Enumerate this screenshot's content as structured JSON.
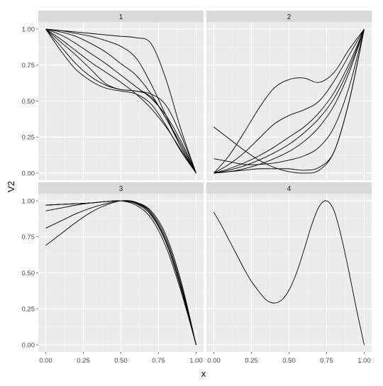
{
  "chart_data": {
    "type": "line",
    "title": "",
    "xlabel": "x",
    "ylabel": "V2",
    "xlim": [
      0,
      1
    ],
    "ylim": [
      0,
      1
    ],
    "x_ticks": [
      "0.00",
      "0.25",
      "0.50",
      "0.75",
      "1.00"
    ],
    "y_ticks": [
      "0.00",
      "0.25",
      "0.50",
      "0.75",
      "1.00"
    ],
    "grid": true,
    "legend": "none",
    "colors": {
      "panel_bg": "#ebebeb",
      "strip_bg": "#d9d9d9",
      "grid_major": "#ffffff",
      "grid_minor": "#f5f5f5",
      "line": "#000000"
    },
    "facets": [
      {
        "label": "1",
        "series": [
          {
            "x": [
              0,
              0.1,
              0.2,
              0.3,
              0.4,
              0.5,
              0.6,
              0.7,
              0.8,
              0.9,
              1.0
            ],
            "y": [
              1.0,
              0.99,
              0.98,
              0.97,
              0.96,
              0.95,
              0.94,
              0.9,
              0.65,
              0.3,
              0.0
            ]
          },
          {
            "x": [
              0,
              0.1,
              0.2,
              0.3,
              0.4,
              0.5,
              0.6,
              0.7,
              0.8,
              0.9,
              1.0
            ],
            "y": [
              1.0,
              0.99,
              0.97,
              0.95,
              0.92,
              0.88,
              0.8,
              0.62,
              0.4,
              0.18,
              0.0
            ]
          },
          {
            "x": [
              0,
              0.1,
              0.2,
              0.3,
              0.4,
              0.5,
              0.6,
              0.7,
              0.8,
              0.9,
              1.0
            ],
            "y": [
              1.0,
              0.98,
              0.95,
              0.9,
              0.84,
              0.76,
              0.68,
              0.55,
              0.38,
              0.2,
              0.0
            ]
          },
          {
            "x": [
              0,
              0.1,
              0.2,
              0.3,
              0.4,
              0.5,
              0.6,
              0.7,
              0.8,
              0.9,
              1.0
            ],
            "y": [
              1.0,
              0.96,
              0.9,
              0.83,
              0.76,
              0.68,
              0.6,
              0.52,
              0.4,
              0.22,
              0.0
            ]
          },
          {
            "x": [
              0,
              0.1,
              0.2,
              0.3,
              0.4,
              0.5,
              0.6,
              0.7,
              0.8,
              0.9,
              1.0
            ],
            "y": [
              1.0,
              0.93,
              0.85,
              0.77,
              0.7,
              0.63,
              0.55,
              0.45,
              0.32,
              0.16,
              0.0
            ]
          },
          {
            "x": [
              0,
              0.1,
              0.2,
              0.3,
              0.4,
              0.5,
              0.6,
              0.7,
              0.8,
              0.9,
              1.0
            ],
            "y": [
              1.0,
              0.91,
              0.82,
              0.72,
              0.62,
              0.58,
              0.57,
              0.53,
              0.38,
              0.18,
              0.0
            ]
          },
          {
            "x": [
              0,
              0.1,
              0.2,
              0.3,
              0.4,
              0.5,
              0.6,
              0.7,
              0.8,
              0.9,
              1.0
            ],
            "y": [
              1.0,
              0.88,
              0.76,
              0.67,
              0.61,
              0.58,
              0.57,
              0.55,
              0.47,
              0.26,
              0.0
            ]
          },
          {
            "x": [
              0,
              0.1,
              0.2,
              0.3,
              0.4,
              0.5,
              0.6,
              0.7,
              0.8,
              0.9,
              1.0
            ],
            "y": [
              1.0,
              0.85,
              0.72,
              0.64,
              0.59,
              0.57,
              0.55,
              0.48,
              0.33,
              0.15,
              0.0
            ]
          }
        ]
      },
      {
        "label": "2",
        "series": [
          {
            "x": [
              0,
              0.1,
              0.2,
              0.3,
              0.4,
              0.5,
              0.6,
              0.7,
              0.8,
              0.9,
              1.0
            ],
            "y": [
              0.0,
              0.12,
              0.28,
              0.45,
              0.59,
              0.65,
              0.66,
              0.63,
              0.7,
              0.86,
              1.0
            ]
          },
          {
            "x": [
              0,
              0.1,
              0.2,
              0.3,
              0.4,
              0.5,
              0.6,
              0.7,
              0.8,
              0.9,
              1.0
            ],
            "y": [
              0.0,
              0.06,
              0.14,
              0.24,
              0.34,
              0.4,
              0.44,
              0.5,
              0.64,
              0.82,
              1.0
            ]
          },
          {
            "x": [
              0,
              0.1,
              0.2,
              0.3,
              0.4,
              0.5,
              0.6,
              0.7,
              0.8,
              0.9,
              1.0
            ],
            "y": [
              0.0,
              0.03,
              0.07,
              0.12,
              0.18,
              0.25,
              0.32,
              0.42,
              0.56,
              0.76,
              1.0
            ]
          },
          {
            "x": [
              0,
              0.1,
              0.2,
              0.3,
              0.4,
              0.5,
              0.6,
              0.7,
              0.8,
              0.9,
              1.0
            ],
            "y": [
              0.0,
              0.02,
              0.05,
              0.09,
              0.14,
              0.2,
              0.28,
              0.38,
              0.52,
              0.73,
              1.0
            ]
          },
          {
            "x": [
              0,
              0.1,
              0.2,
              0.3,
              0.4,
              0.5,
              0.6,
              0.7,
              0.8,
              0.9,
              1.0
            ],
            "y": [
              0.0,
              0.01,
              0.03,
              0.06,
              0.1,
              0.15,
              0.22,
              0.32,
              0.47,
              0.7,
              1.0
            ]
          },
          {
            "x": [
              0,
              0.1,
              0.2,
              0.3,
              0.4,
              0.5,
              0.6,
              0.7,
              0.8,
              0.9,
              1.0
            ],
            "y": [
              0.32,
              0.24,
              0.16,
              0.09,
              0.04,
              0.01,
              0.0,
              0.02,
              0.15,
              0.5,
              1.0
            ]
          },
          {
            "x": [
              0,
              0.1,
              0.2,
              0.3,
              0.4,
              0.5,
              0.6,
              0.7,
              0.8,
              0.9,
              1.0
            ],
            "y": [
              0.1,
              0.08,
              0.06,
              0.06,
              0.07,
              0.09,
              0.12,
              0.18,
              0.32,
              0.6,
              1.0
            ]
          },
          {
            "x": [
              0,
              0.1,
              0.2,
              0.3,
              0.4,
              0.5,
              0.6,
              0.7,
              0.8,
              0.9,
              1.0
            ],
            "y": [
              0.0,
              0.01,
              0.02,
              0.03,
              0.03,
              0.03,
              0.02,
              0.04,
              0.15,
              0.5,
              1.0
            ]
          }
        ]
      },
      {
        "label": "3",
        "series": [
          {
            "x": [
              0,
              0.1,
              0.2,
              0.3,
              0.4,
              0.5,
              0.6,
              0.7,
              0.8,
              0.9,
              1.0
            ],
            "y": [
              0.97,
              0.975,
              0.98,
              0.985,
              0.995,
              1.0,
              0.985,
              0.91,
              0.72,
              0.4,
              0.0
            ]
          },
          {
            "x": [
              0,
              0.1,
              0.2,
              0.3,
              0.4,
              0.5,
              0.6,
              0.7,
              0.8,
              0.9,
              1.0
            ],
            "y": [
              0.93,
              0.95,
              0.97,
              0.985,
              0.995,
              1.0,
              0.98,
              0.9,
              0.71,
              0.39,
              0.0
            ]
          },
          {
            "x": [
              0,
              0.1,
              0.2,
              0.3,
              0.4,
              0.5,
              0.6,
              0.7,
              0.8,
              0.9,
              1.0
            ],
            "y": [
              0.81,
              0.86,
              0.91,
              0.95,
              0.98,
              1.0,
              0.99,
              0.91,
              0.72,
              0.4,
              0.0
            ]
          },
          {
            "x": [
              0,
              0.1,
              0.2,
              0.3,
              0.4,
              0.5,
              0.6,
              0.7,
              0.8,
              0.9,
              1.0
            ],
            "y": [
              0.69,
              0.77,
              0.85,
              0.92,
              0.97,
              1.0,
              0.99,
              0.92,
              0.74,
              0.42,
              0.0
            ]
          },
          {
            "x": [
              0,
              0.1,
              0.2,
              0.3,
              0.4,
              0.5,
              0.6,
              0.7,
              0.8,
              0.9,
              1.0
            ],
            "y": [
              0.97,
              0.975,
              0.98,
              0.985,
              0.995,
              1.0,
              0.99,
              0.93,
              0.76,
              0.44,
              0.0
            ]
          },
          {
            "x": [
              0,
              0.1,
              0.2,
              0.3,
              0.4,
              0.5,
              0.6,
              0.7,
              0.8,
              0.9,
              1.0
            ],
            "y": [
              0.97,
              0.975,
              0.98,
              0.985,
              0.995,
              1.0,
              0.97,
              0.88,
              0.68,
              0.37,
              0.0
            ]
          }
        ]
      },
      {
        "label": "4",
        "series": [
          {
            "x": [
              0,
              0.05,
              0.1,
              0.15,
              0.2,
              0.25,
              0.3,
              0.35,
              0.4,
              0.45,
              0.5,
              0.55,
              0.6,
              0.65,
              0.7,
              0.75,
              0.8,
              0.85,
              0.9,
              0.95,
              1.0
            ],
            "y": [
              0.92,
              0.83,
              0.73,
              0.63,
              0.53,
              0.44,
              0.37,
              0.31,
              0.29,
              0.31,
              0.38,
              0.5,
              0.66,
              0.83,
              0.96,
              1.0,
              0.93,
              0.74,
              0.5,
              0.24,
              0.0
            ]
          }
        ]
      }
    ]
  }
}
